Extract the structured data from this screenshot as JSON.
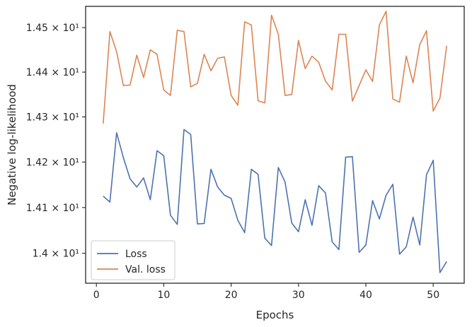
{
  "chart_data": {
    "type": "line",
    "xlabel": "Epochs",
    "ylabel": "Negative log-likelihood",
    "xlim": [
      -1.6,
      54.6
    ],
    "ylim": [
      13.935,
      14.548
    ],
    "x_ticks": [
      0,
      10,
      20,
      30,
      40,
      50
    ],
    "y_scale": "log",
    "y_ticks": [
      {
        "value": 14.0,
        "label": "1.4 × 10¹"
      },
      {
        "value": 14.1,
        "label": "1.41 × 10¹"
      },
      {
        "value": 14.2,
        "label": "1.42 × 10¹"
      },
      {
        "value": 14.3,
        "label": "1.43 × 10¹"
      },
      {
        "value": 14.4,
        "label": "1.44 × 10¹"
      },
      {
        "value": 14.5,
        "label": "1.45 × 10¹"
      }
    ],
    "grid": false,
    "legend_position": "lower-left",
    "x": [
      1,
      2,
      3,
      4,
      5,
      6,
      7,
      8,
      9,
      10,
      11,
      12,
      13,
      14,
      15,
      16,
      17,
      18,
      19,
      20,
      21,
      22,
      23,
      24,
      25,
      26,
      27,
      28,
      29,
      30,
      31,
      32,
      33,
      34,
      35,
      36,
      37,
      38,
      39,
      40,
      41,
      42,
      43,
      44,
      45,
      46,
      47,
      48,
      49,
      50,
      51,
      52
    ],
    "series": [
      {
        "name": "Loss",
        "color": "#4c72b0",
        "values": [
          14.125,
          14.112,
          14.265,
          14.21,
          14.163,
          14.145,
          14.165,
          14.117,
          14.225,
          14.214,
          14.083,
          14.063,
          14.272,
          14.261,
          14.064,
          14.065,
          14.184,
          14.145,
          14.127,
          14.12,
          14.072,
          14.045,
          14.184,
          14.173,
          14.033,
          14.017,
          14.188,
          14.156,
          14.066,
          14.047,
          14.117,
          14.061,
          14.148,
          14.132,
          14.025,
          14.008,
          14.211,
          14.212,
          14.002,
          14.018,
          14.115,
          14.075,
          14.127,
          14.151,
          13.998,
          14.014,
          14.079,
          14.018,
          14.172,
          14.204,
          13.958,
          13.982
        ]
      },
      {
        "name": "Val. loss",
        "color": "#dd8452",
        "values": [
          14.285,
          14.491,
          14.446,
          14.37,
          14.371,
          14.438,
          14.388,
          14.45,
          14.44,
          14.36,
          14.348,
          14.494,
          14.491,
          14.367,
          14.375,
          14.44,
          14.403,
          14.431,
          14.434,
          14.348,
          14.326,
          14.513,
          14.506,
          14.336,
          14.331,
          14.528,
          14.485,
          14.348,
          14.35,
          14.471,
          14.408,
          14.436,
          14.422,
          14.38,
          14.36,
          14.485,
          14.485,
          14.335,
          14.37,
          14.405,
          14.379,
          14.506,
          14.537,
          14.34,
          14.333,
          14.436,
          14.376,
          14.462,
          14.493,
          14.313,
          14.342,
          14.459
        ]
      }
    ]
  }
}
